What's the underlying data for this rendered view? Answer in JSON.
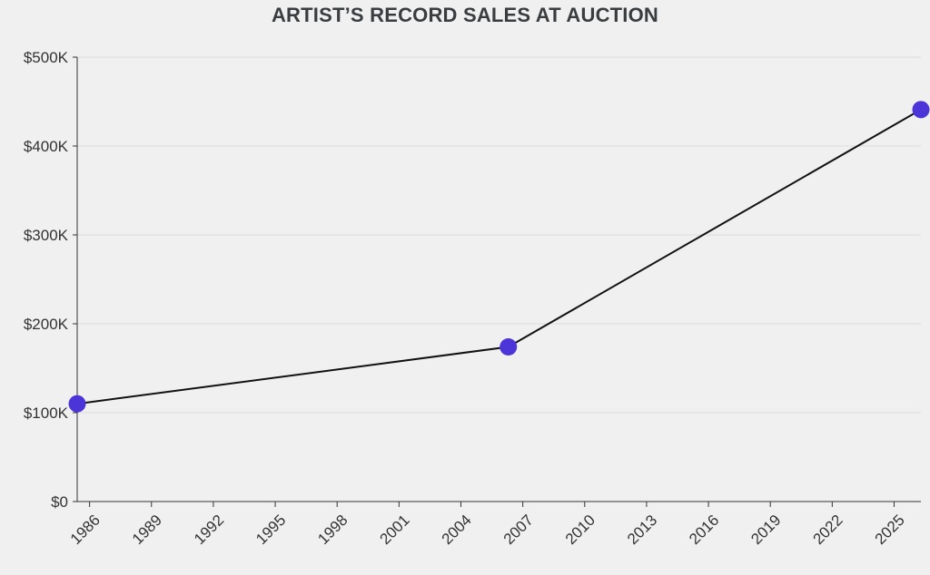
{
  "chart_data": {
    "type": "line",
    "title": "ARTIST’S RECORD SALES AT AUCTION",
    "xlabel": "",
    "ylabel": "",
    "x_ticks": [
      "1986",
      "1989",
      "1992",
      "1995",
      "1998",
      "2001",
      "2004",
      "2007",
      "2010",
      "2013",
      "2016",
      "2019",
      "2022",
      "2025"
    ],
    "y_ticks": [
      "$0",
      "$100K",
      "$200K",
      "$300K",
      "$400K",
      "$500K"
    ],
    "xlim": [
      1985.4,
      2026.3
    ],
    "ylim": [
      0,
      500000
    ],
    "grid": true,
    "series": [
      {
        "points": [
          {
            "x": 1985.4,
            "y": 110000
          },
          {
            "x": 2006.3,
            "y": 174000
          },
          {
            "x": 2026.3,
            "y": 441000
          }
        ]
      }
    ],
    "colors": {
      "line": "#111111",
      "marker": "#4b35d9",
      "grid": "#dcdcdc"
    }
  }
}
